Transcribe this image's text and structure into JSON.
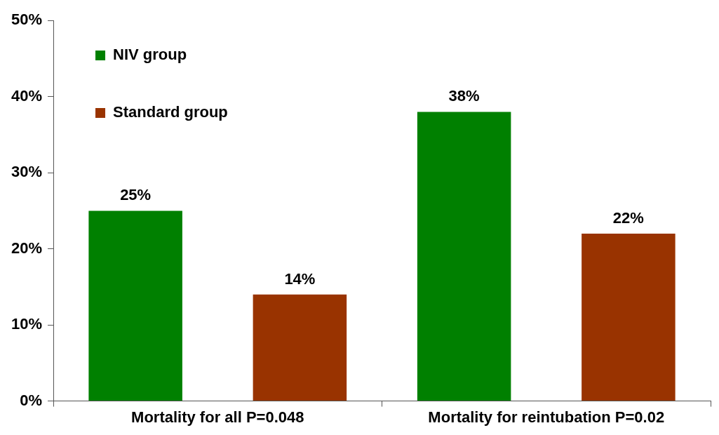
{
  "chart_data": {
    "type": "bar",
    "categories": [
      "Mortality for all P=0.048",
      "Mortality for reintubation P=0.02"
    ],
    "series": [
      {
        "name": "NIV group",
        "color": "#008000",
        "values": [
          25,
          38
        ],
        "value_labels": [
          "25%",
          "38%"
        ]
      },
      {
        "name": "Standard group",
        "color": "#993300",
        "values": [
          14,
          22
        ],
        "value_labels": [
          "14%",
          "22%"
        ]
      }
    ],
    "ylim": [
      0,
      50
    ],
    "yticks": [
      {
        "value": 0,
        "label": "0%"
      },
      {
        "value": 10,
        "label": "10%"
      },
      {
        "value": 20,
        "label": "20%"
      },
      {
        "value": 30,
        "label": "30%"
      },
      {
        "value": 40,
        "label": "40%"
      },
      {
        "value": 50,
        "label": "50%"
      }
    ],
    "grid": false,
    "legend": "top left"
  }
}
